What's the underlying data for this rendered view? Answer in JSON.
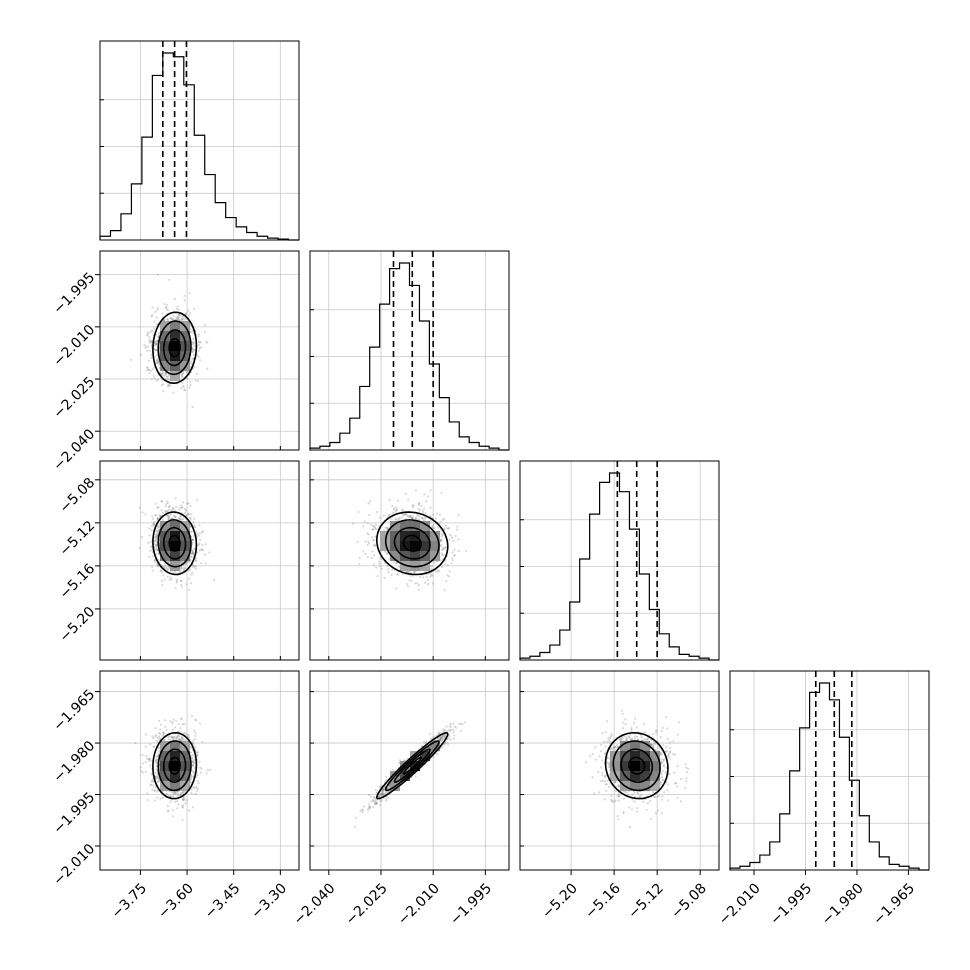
{
  "chart_data": {
    "type": "corner",
    "grid": true,
    "colors": {
      "ink": "#000000",
      "grid": "#c8c8c8",
      "points": "#777777"
    },
    "parameters": [
      {
        "range": [
          -3.88,
          -3.24
        ],
        "ticks": [
          -3.75,
          -3.6,
          -3.45,
          -3.3
        ],
        "tick_labels": [
          "−3.75",
          "−3.60",
          "−3.45",
          "−3.30"
        ],
        "center": -3.64,
        "sd": 0.035,
        "quantiles": [
          -3.678,
          -3.64,
          -3.602
        ]
      },
      {
        "range": [
          -2.0454,
          -1.9882
        ],
        "ticks": [
          -2.04,
          -2.025,
          -2.01,
          -1.995
        ],
        "tick_labels": [
          "−2.040",
          "−2.025",
          "−2.010",
          "−1.995"
        ],
        "center": -2.016,
        "sd": 0.0051,
        "quantiles": [
          -2.0214,
          -2.016,
          -2.01
        ]
      },
      {
        "range": [
          -5.2475,
          -5.0625
        ],
        "ticks": [
          -5.2,
          -5.16,
          -5.12,
          -5.08
        ],
        "tick_labels": [
          "−5.20",
          "−5.16",
          "−5.12",
          "−5.08"
        ],
        "center": -5.139,
        "sd": 0.0145,
        "quantiles": [
          -5.157,
          -5.139,
          -5.12
        ]
      },
      {
        "range": [
          -2.017,
          -1.959
        ],
        "ticks": [
          -2.01,
          -1.995,
          -1.98,
          -1.965
        ],
        "tick_labels": [
          "−2.010",
          "−1.995",
          "−1.980",
          "−1.965"
        ],
        "center": -1.9866,
        "sd": 0.0048,
        "quantiles": [
          -1.992,
          -1.9866,
          -1.9815
        ]
      }
    ],
    "histograms": [
      {
        "param": 0,
        "counts": [
          0.02,
          0.05,
          0.14,
          0.3,
          0.55,
          0.88,
          1.0,
          0.98,
          0.83,
          0.56,
          0.35,
          0.2,
          0.12,
          0.07,
          0.04,
          0.02,
          0.01,
          0.005,
          0.0
        ],
        "range": [
          -3.88,
          -3.24
        ]
      },
      {
        "param": 1,
        "counts": [
          0.01,
          0.02,
          0.04,
          0.09,
          0.17,
          0.34,
          0.55,
          0.78,
          0.97,
          1.0,
          0.88,
          0.69,
          0.46,
          0.28,
          0.15,
          0.07,
          0.04,
          0.02,
          0.01,
          0.0
        ],
        "range": [
          -2.0454,
          -1.9882
        ]
      },
      {
        "param": 2,
        "counts": [
          0.01,
          0.02,
          0.04,
          0.08,
          0.16,
          0.31,
          0.54,
          0.78,
          0.95,
          1.0,
          0.9,
          0.7,
          0.46,
          0.27,
          0.14,
          0.07,
          0.03,
          0.02,
          0.01,
          0.0
        ],
        "range": [
          -5.2475,
          -5.0625
        ]
      },
      {
        "param": 3,
        "counts": [
          0.01,
          0.02,
          0.04,
          0.08,
          0.15,
          0.3,
          0.53,
          0.76,
          0.95,
          1.0,
          0.91,
          0.71,
          0.48,
          0.29,
          0.15,
          0.07,
          0.03,
          0.02,
          0.01,
          0.0
        ],
        "range": [
          -2.017,
          -1.959
        ]
      }
    ],
    "pairs": [
      {
        "x_param": 0,
        "y_param": 1,
        "correlation": 0.05
      },
      {
        "x_param": 0,
        "y_param": 2,
        "correlation": -0.05
      },
      {
        "x_param": 1,
        "y_param": 2,
        "correlation": -0.1
      },
      {
        "x_param": 0,
        "y_param": 3,
        "correlation": 0.03
      },
      {
        "x_param": 1,
        "y_param": 3,
        "correlation": 0.96
      },
      {
        "x_param": 2,
        "y_param": 3,
        "correlation": -0.08
      }
    ],
    "contour_levels_sigma": [
      0.5,
      1.0,
      1.5,
      2.0
    ]
  }
}
